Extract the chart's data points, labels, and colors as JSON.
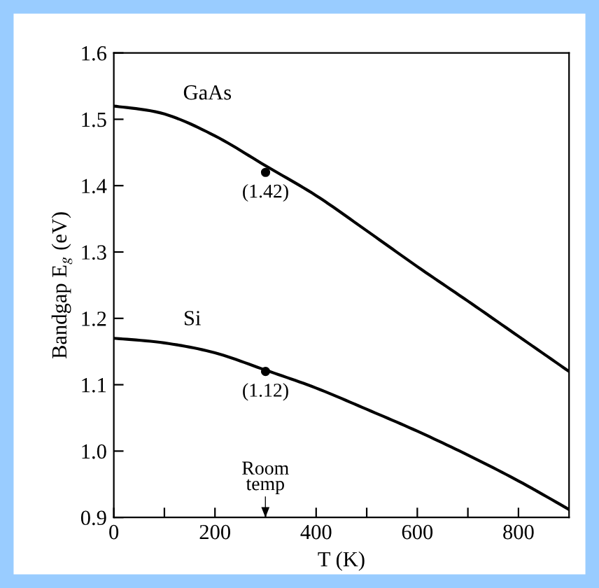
{
  "chart_data": {
    "type": "line",
    "xlabel": "T (K)",
    "ylabel": "Bandgap E$_{g}$ (eV)",
    "x": [
      0,
      100,
      200,
      300,
      400,
      500,
      600,
      700,
      800,
      900
    ],
    "series": [
      {
        "name": "GaAs",
        "color": "#000000",
        "values": [
          1.52,
          1.508,
          1.475,
          1.43,
          1.385,
          1.332,
          1.278,
          1.226,
          1.173,
          1.12
        ]
      },
      {
        "name": "Si",
        "color": "#000000",
        "values": [
          1.17,
          1.163,
          1.148,
          1.122,
          1.095,
          1.063,
          1.03,
          0.994,
          0.955,
          0.912
        ]
      },
      {
        "type": "scatter",
        "color": "#000000",
        "x": [
          300,
          300
        ],
        "values": [
          1.42,
          1.12
        ],
        "value_labels": [
          "(1.42)",
          "(1.12)"
        ]
      }
    ],
    "xlim": [
      0,
      900
    ],
    "xticks": [
      0,
      {
        "value": 100,
        "label": null
      },
      200,
      {
        "value": 300,
        "label": null
      },
      400,
      {
        "value": 500,
        "label": null
      },
      600,
      {
        "value": 700,
        "label": null
      },
      800
    ],
    "ylim": [
      0.9,
      1.6
    ],
    "yticks": [
      0.9,
      {
        "value": 1.0,
        "label": "1.0"
      },
      1.1,
      1.2,
      1.3,
      1.4,
      1.5,
      1.6
    ],
    "grid": false,
    "legend": false,
    "annotations": [
      "Room\ntemp"
    ]
  }
}
